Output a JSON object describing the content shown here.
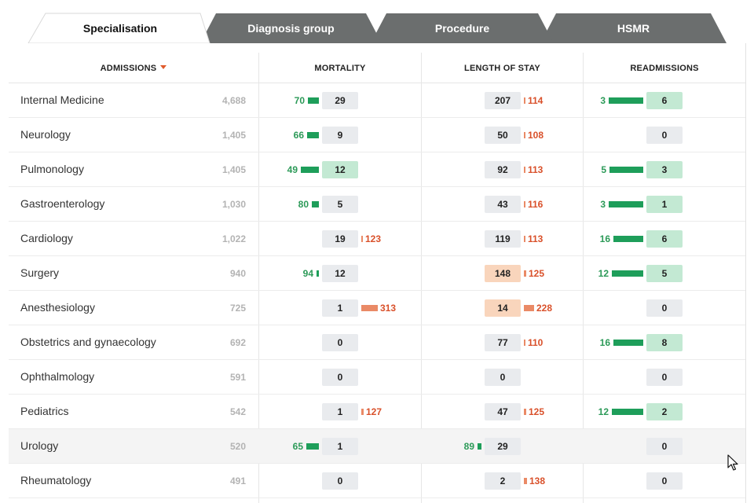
{
  "tabs": [
    {
      "label": "Specialisation",
      "active": true
    },
    {
      "label": "Diagnosis group",
      "active": false
    },
    {
      "label": "Procedure",
      "active": false
    },
    {
      "label": "HSMR",
      "active": false
    }
  ],
  "columns": {
    "admissions": "ADMISSIONS",
    "mortality": "MORTALITY",
    "length_of_stay": "LENGTH OF STAY",
    "readmissions": "READMISSIONS"
  },
  "colors": {
    "good_bar": "#1e9e5a",
    "bad_bar": "#ea8a66",
    "good_box": "#c3e9d3",
    "bad_box": "#f9d5bc",
    "neutral_box": "#e9ebee",
    "sort_arrow": "#e05a2b"
  },
  "sort_icon": "caret-down-icon",
  "rows": [
    {
      "name": "Internal Medicine",
      "admissions": "4,688",
      "mortality": {
        "value": "29",
        "state": "neutral",
        "indicator": {
          "dir": "good",
          "label": "70"
        }
      },
      "los": {
        "value": "207",
        "state": "neutral",
        "indicator": {
          "dir": "bad",
          "label": "114"
        }
      },
      "readmissions": {
        "value": "6",
        "state": "good",
        "indicator": {
          "dir": "good",
          "label": "3"
        }
      }
    },
    {
      "name": "Neurology",
      "admissions": "1,405",
      "mortality": {
        "value": "9",
        "state": "neutral",
        "indicator": {
          "dir": "good",
          "label": "66"
        }
      },
      "los": {
        "value": "50",
        "state": "neutral",
        "indicator": {
          "dir": "bad",
          "label": "108"
        }
      },
      "readmissions": {
        "value": "0",
        "state": "neutral",
        "indicator": null
      }
    },
    {
      "name": "Pulmonology",
      "admissions": "1,405",
      "mortality": {
        "value": "12",
        "state": "good",
        "indicator": {
          "dir": "good",
          "label": "49"
        }
      },
      "los": {
        "value": "92",
        "state": "neutral",
        "indicator": {
          "dir": "bad",
          "label": "113"
        }
      },
      "readmissions": {
        "value": "3",
        "state": "good",
        "indicator": {
          "dir": "good",
          "label": "5"
        }
      }
    },
    {
      "name": "Gastroenterology",
      "admissions": "1,030",
      "mortality": {
        "value": "5",
        "state": "neutral",
        "indicator": {
          "dir": "good",
          "label": "80"
        }
      },
      "los": {
        "value": "43",
        "state": "neutral",
        "indicator": {
          "dir": "bad",
          "label": "116"
        }
      },
      "readmissions": {
        "value": "1",
        "state": "good",
        "indicator": {
          "dir": "good",
          "label": "3"
        }
      }
    },
    {
      "name": "Cardiology",
      "admissions": "1,022",
      "mortality": {
        "value": "19",
        "state": "neutral",
        "indicator": {
          "dir": "bad",
          "label": "123"
        }
      },
      "los": {
        "value": "119",
        "state": "neutral",
        "indicator": {
          "dir": "bad",
          "label": "113"
        }
      },
      "readmissions": {
        "value": "6",
        "state": "good",
        "indicator": {
          "dir": "good",
          "label": "16"
        }
      }
    },
    {
      "name": "Surgery",
      "admissions": "940",
      "mortality": {
        "value": "12",
        "state": "neutral",
        "indicator": {
          "dir": "good",
          "label": "94"
        }
      },
      "los": {
        "value": "148",
        "state": "bad",
        "indicator": {
          "dir": "bad",
          "label": "125"
        }
      },
      "readmissions": {
        "value": "5",
        "state": "good",
        "indicator": {
          "dir": "good",
          "label": "12"
        }
      }
    },
    {
      "name": "Anesthesiology",
      "admissions": "725",
      "mortality": {
        "value": "1",
        "state": "neutral",
        "indicator": {
          "dir": "bad",
          "label": "313"
        }
      },
      "los": {
        "value": "14",
        "state": "bad",
        "indicator": {
          "dir": "bad",
          "label": "228"
        }
      },
      "readmissions": {
        "value": "0",
        "state": "neutral",
        "indicator": null
      }
    },
    {
      "name": "Obstetrics and gynaecology",
      "admissions": "692",
      "mortality": {
        "value": "0",
        "state": "neutral",
        "indicator": null
      },
      "los": {
        "value": "77",
        "state": "neutral",
        "indicator": {
          "dir": "bad",
          "label": "110"
        }
      },
      "readmissions": {
        "value": "8",
        "state": "good",
        "indicator": {
          "dir": "good",
          "label": "16"
        }
      }
    },
    {
      "name": "Ophthalmology",
      "admissions": "591",
      "mortality": {
        "value": "0",
        "state": "neutral",
        "indicator": null
      },
      "los": {
        "value": "0",
        "state": "neutral",
        "indicator": null
      },
      "readmissions": {
        "value": "0",
        "state": "neutral",
        "indicator": null
      }
    },
    {
      "name": "Pediatrics",
      "admissions": "542",
      "mortality": {
        "value": "1",
        "state": "neutral",
        "indicator": {
          "dir": "bad",
          "label": "127"
        }
      },
      "los": {
        "value": "47",
        "state": "neutral",
        "indicator": {
          "dir": "bad",
          "label": "125"
        }
      },
      "readmissions": {
        "value": "2",
        "state": "good",
        "indicator": {
          "dir": "good",
          "label": "12"
        }
      }
    },
    {
      "name": "Urology",
      "admissions": "520",
      "hover": true,
      "mortality": {
        "value": "1",
        "state": "neutral",
        "indicator": {
          "dir": "good",
          "label": "65"
        }
      },
      "los": {
        "value": "29",
        "state": "neutral",
        "indicator": {
          "dir": "good",
          "label": "89"
        }
      },
      "readmissions": {
        "value": "0",
        "state": "neutral",
        "indicator": null
      }
    },
    {
      "name": "Rheumatology",
      "admissions": "491",
      "mortality": {
        "value": "0",
        "state": "neutral",
        "indicator": null
      },
      "los": {
        "value": "2",
        "state": "neutral",
        "indicator": {
          "dir": "bad",
          "label": "138"
        }
      },
      "readmissions": {
        "value": "0",
        "state": "neutral",
        "indicator": null
      }
    }
  ]
}
